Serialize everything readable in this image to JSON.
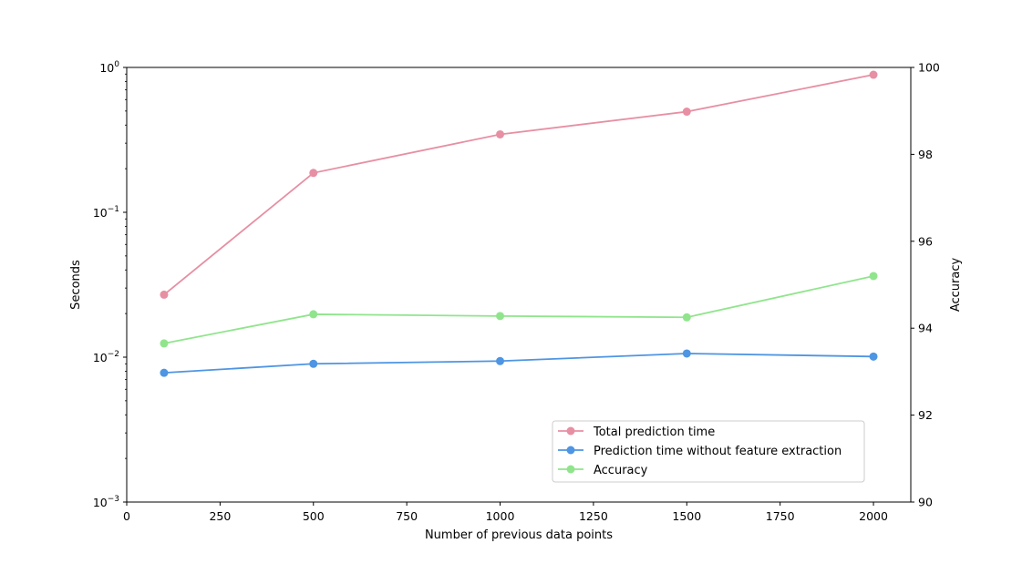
{
  "chart_data": {
    "type": "line",
    "title": "",
    "xlabel": "Number of previous data points",
    "ylabel_left": "Seconds",
    "ylabel_right": "Accuracy",
    "xlim": [
      0,
      2100
    ],
    "ylim_left": [
      0.001,
      1
    ],
    "yscale_left": "log",
    "ylim_right": [
      90,
      100
    ],
    "grid": false,
    "legend_position": "lower-right",
    "x_ticks": [
      0,
      250,
      500,
      750,
      1000,
      1250,
      1500,
      1750,
      2000
    ],
    "x_tick_labels": [
      "0",
      "250",
      "500",
      "750",
      "1000",
      "1250",
      "1500",
      "1750",
      "2000"
    ],
    "y_left_ticks": [
      0.001,
      0.01,
      0.1,
      1
    ],
    "y_left_tick_labels": [
      {
        "base": "10",
        "exp": "−3"
      },
      {
        "base": "10",
        "exp": "−2"
      },
      {
        "base": "10",
        "exp": "−1"
      },
      {
        "base": "10",
        "exp": "0"
      }
    ],
    "y_right_ticks": [
      90,
      92,
      94,
      96,
      98,
      100
    ],
    "y_right_tick_labels": [
      "90",
      "92",
      "94",
      "96",
      "98",
      "100"
    ],
    "x": [
      100,
      500,
      1000,
      1500,
      2000
    ],
    "series": [
      {
        "name": "Total prediction time",
        "axis": "left",
        "color": "#e78fa3",
        "values": [
          0.027,
          0.187,
          0.345,
          0.495,
          0.89
        ]
      },
      {
        "name": "Prediction time without feature extraction",
        "axis": "left",
        "color": "#4e95e3",
        "values": [
          0.0078,
          0.009,
          0.0094,
          0.0106,
          0.0101
        ]
      },
      {
        "name": "Accuracy",
        "axis": "right",
        "color": "#90e58c",
        "values": [
          93.65,
          94.32,
          94.28,
          94.25,
          95.2
        ]
      }
    ]
  }
}
